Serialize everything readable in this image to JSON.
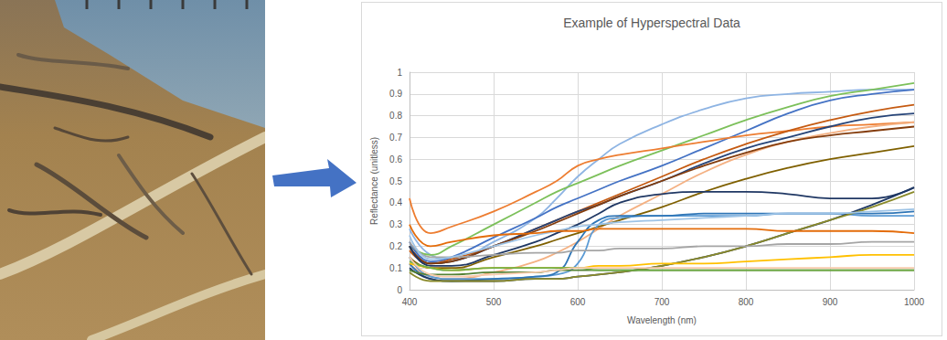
{
  "chart_data": {
    "type": "line",
    "title": "Example of Hyperspectral Data",
    "x_label": "Wavelength (nm)",
    "y_label": "Reflectance (unitless)",
    "x": [
      400,
      425,
      450,
      500,
      550,
      575,
      600,
      625,
      650,
      700,
      750,
      800,
      850,
      900,
      950,
      1000
    ],
    "xlim": [
      400,
      1000
    ],
    "xticks": [
      400,
      500,
      600,
      700,
      800,
      900,
      1000
    ],
    "ylim": [
      0,
      1
    ],
    "yticks": [
      0,
      0.1,
      0.2,
      0.3,
      0.4,
      0.5,
      0.6,
      0.7,
      0.8,
      0.9,
      1
    ],
    "grid": true,
    "series": [
      {
        "color": "#8eb4e3",
        "values": [
          0.28,
          0.16,
          0.14,
          0.22,
          0.33,
          0.42,
          0.52,
          0.6,
          0.67,
          0.76,
          0.83,
          0.88,
          0.9,
          0.91,
          0.92,
          0.92
        ]
      },
      {
        "color": "#7cc05a",
        "values": [
          0.2,
          0.16,
          0.2,
          0.3,
          0.4,
          0.45,
          0.49,
          0.53,
          0.57,
          0.64,
          0.71,
          0.78,
          0.84,
          0.89,
          0.92,
          0.95
        ]
      },
      {
        "color": "#4472c4",
        "values": [
          0.22,
          0.13,
          0.15,
          0.24,
          0.33,
          0.38,
          0.42,
          0.46,
          0.5,
          0.57,
          0.65,
          0.73,
          0.81,
          0.87,
          0.9,
          0.92
        ]
      },
      {
        "color": "#ed7d31",
        "values": [
          0.42,
          0.26,
          0.29,
          0.36,
          0.45,
          0.5,
          0.57,
          0.6,
          0.62,
          0.65,
          0.68,
          0.71,
          0.73,
          0.75,
          0.76,
          0.77
        ]
      },
      {
        "color": "#c55a11",
        "values": [
          0.18,
          0.12,
          0.14,
          0.2,
          0.28,
          0.32,
          0.36,
          0.4,
          0.44,
          0.52,
          0.6,
          0.67,
          0.73,
          0.78,
          0.82,
          0.85
        ]
      },
      {
        "color": "#264478",
        "values": [
          0.2,
          0.12,
          0.13,
          0.2,
          0.28,
          0.32,
          0.36,
          0.39,
          0.43,
          0.5,
          0.58,
          0.65,
          0.7,
          0.75,
          0.79,
          0.81
        ]
      },
      {
        "color": "#f4b183",
        "values": [
          0.12,
          0.06,
          0.05,
          0.08,
          0.13,
          0.17,
          0.22,
          0.28,
          0.34,
          0.44,
          0.54,
          0.62,
          0.68,
          0.72,
          0.75,
          0.77
        ]
      },
      {
        "color": "#843c0c",
        "values": [
          0.2,
          0.12,
          0.13,
          0.2,
          0.27,
          0.31,
          0.35,
          0.39,
          0.43,
          0.5,
          0.57,
          0.63,
          0.68,
          0.71,
          0.73,
          0.75
        ]
      },
      {
        "color": "#7f6000",
        "values": [
          0.15,
          0.1,
          0.1,
          0.15,
          0.2,
          0.23,
          0.26,
          0.29,
          0.32,
          0.38,
          0.45,
          0.51,
          0.56,
          0.6,
          0.63,
          0.66
        ]
      },
      {
        "color": "#203864",
        "values": [
          0.2,
          0.11,
          0.11,
          0.16,
          0.22,
          0.26,
          0.3,
          0.35,
          0.4,
          0.44,
          0.45,
          0.45,
          0.44,
          0.42,
          0.42,
          0.47
        ]
      },
      {
        "color": "#5b9bd5",
        "values": [
          0.15,
          0.06,
          0.05,
          0.05,
          0.06,
          0.07,
          0.12,
          0.3,
          0.33,
          0.34,
          0.34,
          0.34,
          0.35,
          0.35,
          0.34,
          0.34
        ]
      },
      {
        "color": "#2e75b6",
        "values": [
          0.12,
          0.05,
          0.04,
          0.05,
          0.06,
          0.08,
          0.22,
          0.32,
          0.34,
          0.34,
          0.35,
          0.35,
          0.35,
          0.35,
          0.35,
          0.36
        ]
      },
      {
        "color": "#1f3864",
        "values": [
          0.1,
          0.05,
          0.04,
          0.04,
          0.05,
          0.05,
          0.06,
          0.07,
          0.08,
          0.11,
          0.15,
          0.2,
          0.26,
          0.32,
          0.39,
          0.47
        ]
      },
      {
        "color": "#8a8a2a",
        "values": [
          0.08,
          0.04,
          0.04,
          0.04,
          0.05,
          0.05,
          0.06,
          0.07,
          0.08,
          0.11,
          0.15,
          0.2,
          0.26,
          0.32,
          0.38,
          0.45
        ]
      },
      {
        "color": "#a5a5a5",
        "values": [
          0.22,
          0.15,
          0.15,
          0.16,
          0.17,
          0.17,
          0.18,
          0.18,
          0.19,
          0.19,
          0.2,
          0.2,
          0.21,
          0.21,
          0.22,
          0.22
        ]
      },
      {
        "color": "#9dc3e6",
        "values": [
          0.25,
          0.14,
          0.15,
          0.2,
          0.25,
          0.27,
          0.29,
          0.3,
          0.31,
          0.32,
          0.33,
          0.34,
          0.35,
          0.35,
          0.36,
          0.37
        ]
      },
      {
        "color": "#e46c0a",
        "values": [
          0.3,
          0.2,
          0.22,
          0.25,
          0.26,
          0.27,
          0.27,
          0.28,
          0.28,
          0.28,
          0.28,
          0.28,
          0.27,
          0.27,
          0.27,
          0.26
        ]
      },
      {
        "color": "#ffc000",
        "values": [
          0.12,
          0.1,
          0.09,
          0.1,
          0.1,
          0.1,
          0.1,
          0.11,
          0.11,
          0.12,
          0.12,
          0.13,
          0.14,
          0.15,
          0.16,
          0.16
        ]
      },
      {
        "color": "#548235",
        "values": [
          0.09,
          0.07,
          0.07,
          0.08,
          0.08,
          0.09,
          0.09,
          0.09,
          0.09,
          0.09,
          0.09,
          0.09,
          0.09,
          0.09,
          0.09,
          0.09
        ]
      },
      {
        "color": "#70ad47",
        "values": [
          0.13,
          0.1,
          0.09,
          0.1,
          0.1,
          0.1,
          0.1,
          0.09,
          0.09,
          0.09,
          0.09,
          0.09,
          0.09,
          0.09,
          0.09,
          0.09
        ]
      },
      {
        "color": "#f8cbad",
        "values": [
          0.15,
          0.07,
          0.06,
          0.07,
          0.08,
          0.09,
          0.1,
          0.1,
          0.1,
          0.1,
          0.1,
          0.1,
          0.1,
          0.1,
          0.1,
          0.1
        ]
      }
    ]
  }
}
